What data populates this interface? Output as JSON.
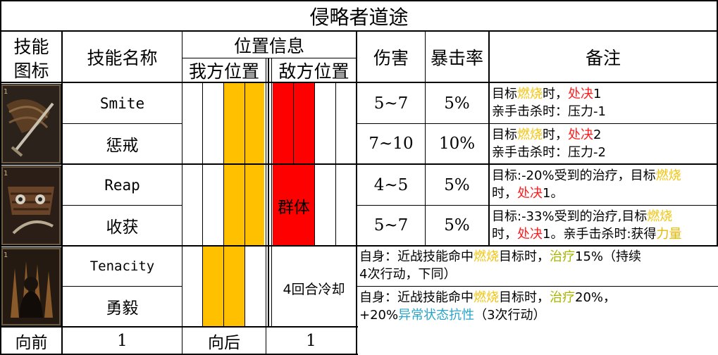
{
  "title": "侵略者道途",
  "headers": {
    "icon": [
      "技能",
      "图标"
    ],
    "name": "技能名称",
    "position": "位置信息",
    "own_position": "我方位置",
    "enemy_position": "敌方位置",
    "damage": "伤害",
    "crit": "暴击率",
    "notes": "备注"
  },
  "skills": [
    {
      "name": "Smite",
      "damage": "5~7",
      "crit": "5%",
      "icon": "smite-icon",
      "note_lines": [
        [
          {
            "t": "目标"
          },
          {
            "t": "燃烧",
            "c": "fire"
          },
          {
            "t": "时，"
          },
          {
            "t": "处决",
            "c": "red"
          },
          {
            "t": "1"
          }
        ],
        [
          {
            "t": "亲手击杀时：压力-1"
          }
        ]
      ]
    },
    {
      "name": "惩戒",
      "damage": "7~10",
      "crit": "10%",
      "note_lines": [
        [
          {
            "t": "目标"
          },
          {
            "t": "燃烧",
            "c": "fire"
          },
          {
            "t": "时，"
          },
          {
            "t": "处决",
            "c": "red"
          },
          {
            "t": "2"
          }
        ],
        [
          {
            "t": "亲手击杀时：压力-2"
          }
        ]
      ]
    },
    {
      "name": "Reap",
      "damage": "4~5",
      "crit": "5%",
      "icon": "reap-icon",
      "note_lines": [
        [
          {
            "t": "目标:-20%受到的治疗，目标"
          },
          {
            "t": "燃烧",
            "c": "fire"
          }
        ],
        [
          {
            "t": "时，"
          },
          {
            "t": "处决",
            "c": "red"
          },
          {
            "t": "1。"
          }
        ]
      ]
    },
    {
      "name": "收获",
      "damage": "5~7",
      "crit": "5%",
      "note_lines": [
        [
          {
            "t": "目标:-33%受到的治疗,目标"
          },
          {
            "t": "燃烧",
            "c": "fire"
          }
        ],
        [
          {
            "t": "时，"
          },
          {
            "t": "处决",
            "c": "red"
          },
          {
            "t": "1。亲手击杀时:获得"
          },
          {
            "t": "力量",
            "c": "power"
          }
        ]
      ]
    },
    {
      "name": "Tenacity",
      "icon": "tenacity-icon",
      "note_lines": [
        [
          {
            "t": "自身：近战技能命中"
          },
          {
            "t": "燃烧",
            "c": "fire"
          },
          {
            "t": "目标时，"
          },
          {
            "t": "治疗",
            "c": "heal"
          },
          {
            "t": "15%（持续"
          }
        ],
        [
          {
            "t": "4次行动，下同）"
          }
        ]
      ]
    },
    {
      "name": "勇毅",
      "note_lines": [
        [
          {
            "t": "自身：近战技能命中"
          },
          {
            "t": "燃烧",
            "c": "fire"
          },
          {
            "t": "目标时，"
          },
          {
            "t": "治疗",
            "c": "heal"
          },
          {
            "t": "20%，"
          }
        ],
        [
          {
            "t": "+20%"
          },
          {
            "t": "异常状态抗性",
            "c": "res"
          },
          {
            "t": "（3次行动）"
          }
        ]
      ]
    }
  ],
  "area_label": "群体",
  "cooldown_label": "4回合冷却",
  "footer": {
    "forward_label": "向前",
    "forward_value": "1",
    "backward_label": "向后",
    "backward_value": "1"
  },
  "colors": {
    "own_slot": "#ffc000",
    "enemy_slot": "#ff0000",
    "fire": "#f2c40f",
    "execute": "#ff1c1c",
    "heal": "#a8b400",
    "resist": "#2aa4c8"
  }
}
